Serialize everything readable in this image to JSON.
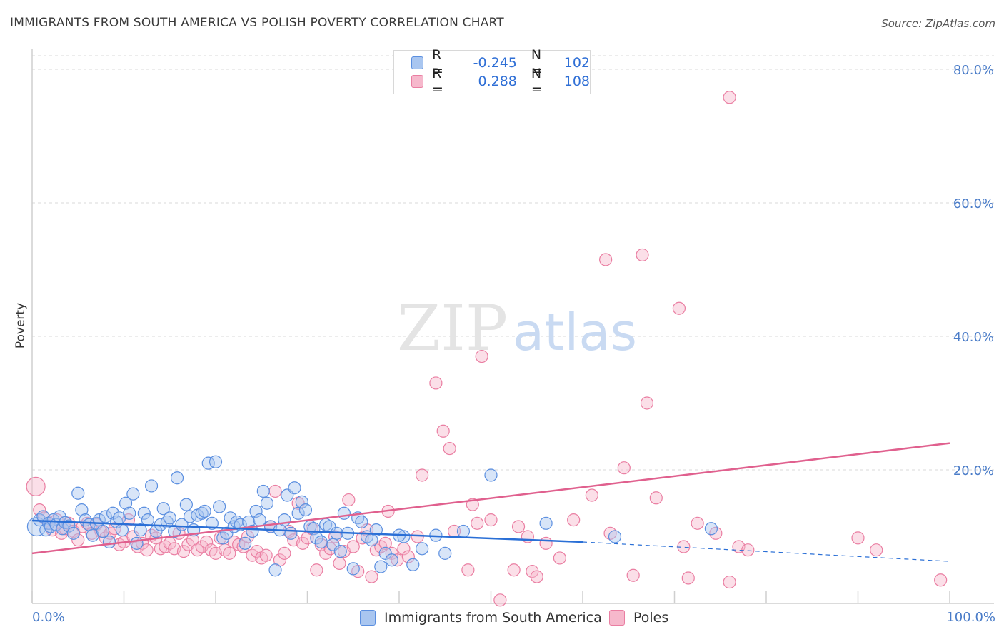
{
  "title": "IMMIGRANTS FROM SOUTH AMERICA VS POLISH POVERTY CORRELATION CHART",
  "source": "Source: ZipAtlas.com",
  "watermark": {
    "zip": "ZIP",
    "atlas": "atlas"
  },
  "legend": {
    "rows": [
      {
        "r_label": "R =",
        "r_value": "-0.245",
        "n_label": "N =",
        "n_value": "102"
      },
      {
        "r_label": "R =",
        "r_value": "0.288",
        "n_label": "N =",
        "n_value": "108"
      }
    ]
  },
  "bottom_legend": {
    "series_a": "Immigrants from South America",
    "series_b": "Poles"
  },
  "colors": {
    "blue_fill": "#a9c6f0",
    "blue_stroke": "#5b8fe0",
    "blue_line": "#2a6fd6",
    "pink_fill": "#f6b8cc",
    "pink_stroke": "#ea7ea2",
    "pink_line": "#e0608e",
    "tick": "#4a7cc8",
    "grid": "#d9d9d9"
  },
  "chart_data": {
    "type": "scatter",
    "title": "IMMIGRANTS FROM SOUTH AMERICA VS POLISH POVERTY CORRELATION CHART",
    "xlabel": "",
    "ylabel": "Poverty",
    "xlim": [
      0,
      100
    ],
    "ylim": [
      0,
      80
    ],
    "x_ticks": [
      "0.0%",
      "100.0%"
    ],
    "y_ticks": [
      "20.0%",
      "40.0%",
      "60.0%",
      "80.0%"
    ],
    "y_tick_values": [
      20,
      40,
      60,
      80
    ],
    "grid": true,
    "legend_position": "top-center",
    "series": [
      {
        "name": "Immigrants from South America",
        "r": -0.245,
        "n": 102,
        "trend": {
          "x0": 0,
          "y0": 12.4,
          "x1": 60,
          "y1": 9.2,
          "dash_to_x": 100,
          "dash_to_y": 6.3
        },
        "points": [
          [
            0.5,
            11.5
          ],
          [
            0.8,
            12.5
          ],
          [
            1.2,
            13.0
          ],
          [
            1.5,
            11.0
          ],
          [
            1.8,
            12.0
          ],
          [
            2.0,
            11.5
          ],
          [
            2.3,
            12.5
          ],
          [
            2.6,
            11.8
          ],
          [
            3.0,
            13.0
          ],
          [
            3.3,
            11.2
          ],
          [
            3.6,
            12.1
          ],
          [
            4.0,
            11.6
          ],
          [
            4.5,
            10.5
          ],
          [
            5.0,
            16.5
          ],
          [
            5.4,
            14.0
          ],
          [
            5.8,
            12.5
          ],
          [
            6.2,
            11.8
          ],
          [
            6.6,
            10.2
          ],
          [
            7.0,
            12.0
          ],
          [
            7.3,
            12.5
          ],
          [
            7.7,
            10.8
          ],
          [
            8.0,
            13.0
          ],
          [
            8.4,
            9.2
          ],
          [
            8.8,
            13.5
          ],
          [
            9.2,
            12.2
          ],
          [
            9.5,
            12.8
          ],
          [
            9.8,
            11.0
          ],
          [
            10.2,
            15.0
          ],
          [
            10.6,
            13.5
          ],
          [
            11.0,
            16.4
          ],
          [
            11.4,
            9.0
          ],
          [
            11.8,
            11.0
          ],
          [
            12.2,
            13.5
          ],
          [
            12.6,
            12.5
          ],
          [
            13.0,
            17.6
          ],
          [
            13.5,
            10.8
          ],
          [
            14.0,
            11.8
          ],
          [
            14.3,
            14.2
          ],
          [
            14.7,
            12.2
          ],
          [
            15.0,
            12.8
          ],
          [
            15.5,
            10.8
          ],
          [
            15.8,
            18.8
          ],
          [
            16.3,
            11.8
          ],
          [
            16.8,
            14.8
          ],
          [
            17.2,
            13.0
          ],
          [
            17.6,
            11.0
          ],
          [
            18.0,
            13.2
          ],
          [
            18.5,
            13.5
          ],
          [
            18.8,
            13.8
          ],
          [
            19.2,
            21.0
          ],
          [
            19.6,
            12.0
          ],
          [
            20.0,
            21.2
          ],
          [
            20.4,
            14.5
          ],
          [
            20.8,
            9.8
          ],
          [
            21.2,
            10.5
          ],
          [
            21.6,
            12.8
          ],
          [
            22.0,
            11.5
          ],
          [
            22.3,
            12.2
          ],
          [
            22.7,
            11.8
          ],
          [
            23.2,
            9.0
          ],
          [
            23.6,
            12.2
          ],
          [
            24.0,
            10.8
          ],
          [
            24.4,
            13.8
          ],
          [
            24.8,
            12.5
          ],
          [
            25.2,
            16.8
          ],
          [
            25.6,
            15.0
          ],
          [
            26.0,
            11.5
          ],
          [
            26.5,
            5.0
          ],
          [
            27.0,
            11.0
          ],
          [
            27.5,
            12.5
          ],
          [
            27.8,
            16.2
          ],
          [
            28.2,
            10.5
          ],
          [
            28.6,
            17.3
          ],
          [
            29.0,
            13.5
          ],
          [
            29.4,
            15.2
          ],
          [
            29.8,
            14.0
          ],
          [
            30.3,
            11.5
          ],
          [
            30.7,
            11.2
          ],
          [
            31.0,
            9.8
          ],
          [
            31.5,
            9.2
          ],
          [
            32.0,
            11.8
          ],
          [
            32.4,
            11.5
          ],
          [
            32.8,
            8.8
          ],
          [
            33.2,
            10.5
          ],
          [
            33.6,
            7.8
          ],
          [
            34.0,
            13.5
          ],
          [
            34.4,
            10.5
          ],
          [
            35.0,
            5.2
          ],
          [
            35.5,
            12.8
          ],
          [
            35.9,
            12.2
          ],
          [
            36.5,
            10.0
          ],
          [
            37.0,
            9.5
          ],
          [
            37.5,
            11.0
          ],
          [
            38.0,
            5.5
          ],
          [
            38.5,
            7.5
          ],
          [
            39.2,
            6.5
          ],
          [
            40.5,
            10.0
          ],
          [
            41.5,
            5.8
          ],
          [
            42.5,
            8.2
          ],
          [
            44.0,
            10.2
          ],
          [
            47.0,
            10.8
          ],
          [
            50.0,
            19.2
          ]
        ],
        "extra_points": [
          [
            40.0,
            10.2
          ],
          [
            45.0,
            7.5
          ],
          [
            56.0,
            12.0
          ],
          [
            63.5,
            10.0
          ],
          [
            74.0,
            11.2
          ]
        ]
      },
      {
        "name": "Poles",
        "r": 0.288,
        "n": 108,
        "trend": {
          "x0": 0,
          "y0": 7.5,
          "x1": 100,
          "y1": 24.0
        },
        "points": [
          [
            0.4,
            17.5
          ],
          [
            0.8,
            14.0
          ],
          [
            1.3,
            12.8
          ],
          [
            1.8,
            12.0
          ],
          [
            2.2,
            11.0
          ],
          [
            2.7,
            12.5
          ],
          [
            3.2,
            10.5
          ],
          [
            3.6,
            11.2
          ],
          [
            4.0,
            12.0
          ],
          [
            4.5,
            10.8
          ],
          [
            5.0,
            9.5
          ],
          [
            5.5,
            11.5
          ],
          [
            6.0,
            12.0
          ],
          [
            6.5,
            10.5
          ],
          [
            7.0,
            11.8
          ],
          [
            7.5,
            10.8
          ],
          [
            8.0,
            9.8
          ],
          [
            8.5,
            10.5
          ],
          [
            9.0,
            11.2
          ],
          [
            9.5,
            8.8
          ],
          [
            10.0,
            9.2
          ],
          [
            10.5,
            12.5
          ],
          [
            11.0,
            10.0
          ],
          [
            11.5,
            8.5
          ],
          [
            12.0,
            9.0
          ],
          [
            12.5,
            8.0
          ],
          [
            13.0,
            10.2
          ],
          [
            13.5,
            9.8
          ],
          [
            14.0,
            8.2
          ],
          [
            14.5,
            8.5
          ],
          [
            15.0,
            9.0
          ],
          [
            15.5,
            8.2
          ],
          [
            16.0,
            10.5
          ],
          [
            16.5,
            7.8
          ],
          [
            17.0,
            8.8
          ],
          [
            17.5,
            9.5
          ],
          [
            18.0,
            8.0
          ],
          [
            18.5,
            8.5
          ],
          [
            19.0,
            9.2
          ],
          [
            19.5,
            8.0
          ],
          [
            20.0,
            7.5
          ],
          [
            20.5,
            9.8
          ],
          [
            21.0,
            8.0
          ],
          [
            21.5,
            7.5
          ],
          [
            22.0,
            9.2
          ],
          [
            22.5,
            8.8
          ],
          [
            23.0,
            8.5
          ],
          [
            23.5,
            10.0
          ],
          [
            24.0,
            7.2
          ],
          [
            24.5,
            7.8
          ],
          [
            25.0,
            6.8
          ],
          [
            25.5,
            7.2
          ],
          [
            26.0,
            11.5
          ],
          [
            26.5,
            16.8
          ],
          [
            27.0,
            6.5
          ],
          [
            27.5,
            7.5
          ],
          [
            28.0,
            10.8
          ],
          [
            28.5,
            9.5
          ],
          [
            29.0,
            15.0
          ],
          [
            29.5,
            9.0
          ],
          [
            30.0,
            9.8
          ],
          [
            30.5,
            11.2
          ],
          [
            31.0,
            5.0
          ],
          [
            31.5,
            8.8
          ],
          [
            32.0,
            7.5
          ],
          [
            32.5,
            8.2
          ],
          [
            33.0,
            10.0
          ],
          [
            33.5,
            6.0
          ],
          [
            34.0,
            7.8
          ],
          [
            34.5,
            15.5
          ],
          [
            35.0,
            8.5
          ],
          [
            35.5,
            4.8
          ],
          [
            36.0,
            9.8
          ],
          [
            36.5,
            11.0
          ],
          [
            37.0,
            4.0
          ],
          [
            37.5,
            8.0
          ],
          [
            38.0,
            8.5
          ],
          [
            38.5,
            9.0
          ],
          [
            38.8,
            13.8
          ],
          [
            39.2,
            7.5
          ],
          [
            39.8,
            6.5
          ],
          [
            40.5,
            8.2
          ],
          [
            41.0,
            7.0
          ],
          [
            42.0,
            10.0
          ],
          [
            42.5,
            19.2
          ],
          [
            44.0,
            33.0
          ],
          [
            44.8,
            25.8
          ],
          [
            45.5,
            23.2
          ],
          [
            46.0,
            10.8
          ],
          [
            47.5,
            5.0
          ],
          [
            49.0,
            37.0
          ],
          [
            50.0,
            12.5
          ],
          [
            51.0,
            0.5
          ],
          [
            52.5,
            5.0
          ],
          [
            53.0,
            11.5
          ],
          [
            54.0,
            10.0
          ],
          [
            54.5,
            4.8
          ],
          [
            56.0,
            9.0
          ],
          [
            57.5,
            6.8
          ],
          [
            59.0,
            12.5
          ],
          [
            61.0,
            16.2
          ],
          [
            63.0,
            10.5
          ],
          [
            64.5,
            20.3
          ],
          [
            65.5,
            4.2
          ],
          [
            67.0,
            30.0
          ],
          [
            68.0,
            15.8
          ]
        ],
        "extra_points": [
          [
            48.0,
            14.8
          ],
          [
            48.5,
            12.0
          ],
          [
            55.0,
            4.0
          ],
          [
            62.5,
            51.5
          ],
          [
            66.5,
            52.2
          ],
          [
            70.5,
            44.2
          ],
          [
            71.0,
            8.5
          ],
          [
            71.5,
            3.8
          ],
          [
            72.5,
            12.0
          ],
          [
            74.5,
            10.5
          ],
          [
            76.0,
            3.2
          ],
          [
            77.0,
            8.5
          ],
          [
            78.0,
            8.0
          ],
          [
            90.0,
            9.8
          ],
          [
            92.0,
            8.0
          ],
          [
            99.0,
            3.5
          ],
          [
            76.0,
            75.8
          ]
        ]
      }
    ]
  }
}
